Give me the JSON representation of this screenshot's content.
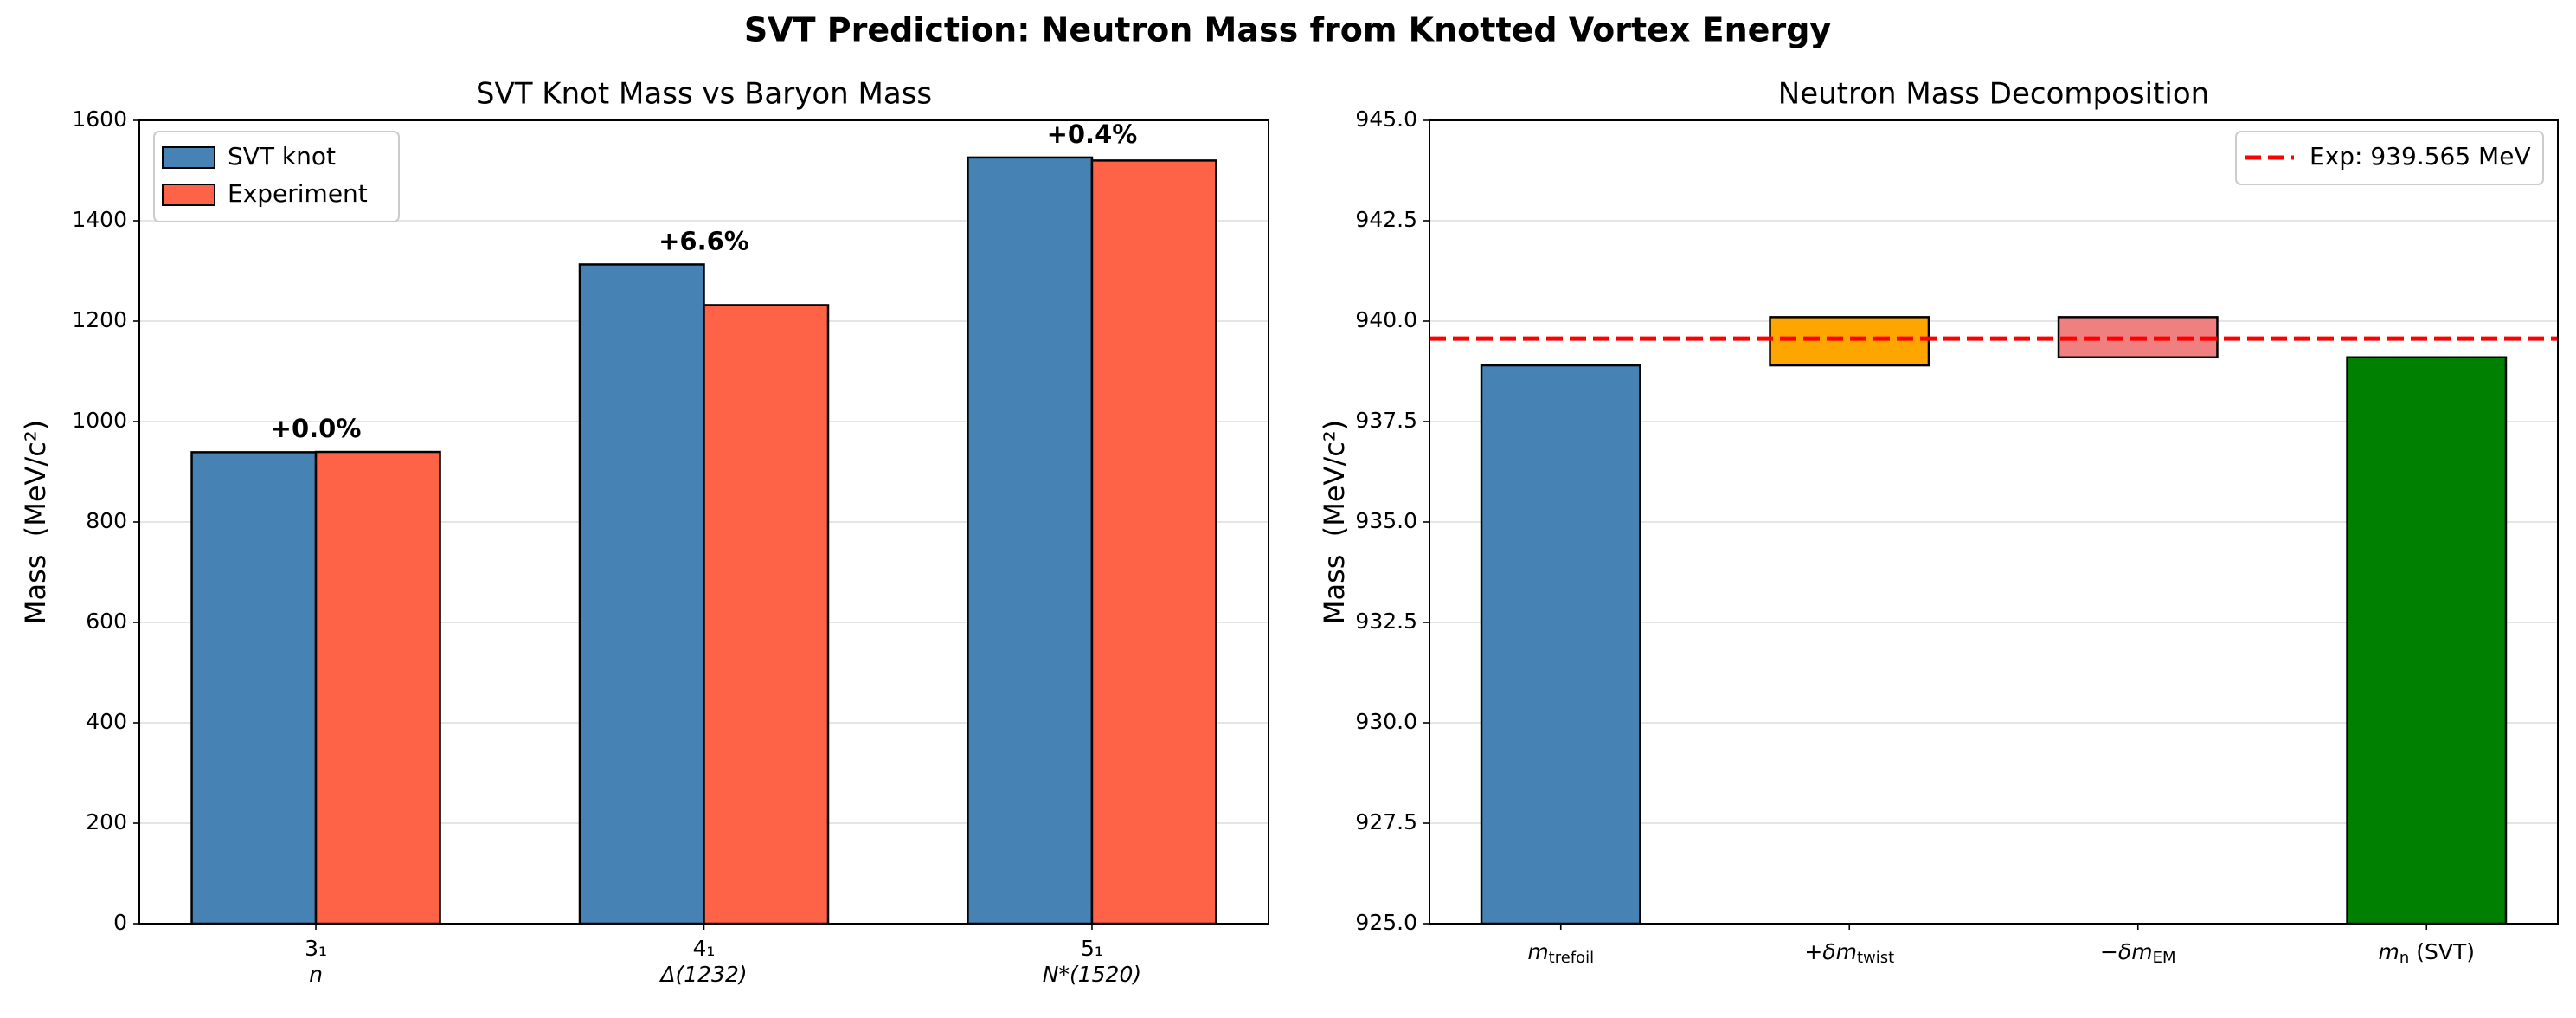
{
  "title": "SVT Prediction: Neutron Mass from Knotted Vortex Energy",
  "chart_data": [
    {
      "type": "bar",
      "title": "SVT Knot Mass vs Baryon Mass",
      "y_label": "Mass  (MeV/c²)",
      "categories": [
        "3₁",
        "4₁",
        "5₁"
      ],
      "sublabels": [
        "n",
        "Δ(1232)",
        "N*(1520)"
      ],
      "series": [
        {
          "name": "SVT knot",
          "color": "#4682b4",
          "values": [
            939,
            1313,
            1526
          ]
        },
        {
          "name": "Experiment",
          "color": "#ff6347",
          "values": [
            939.565,
            1232,
            1520
          ]
        }
      ],
      "annotations": [
        "+0.0%",
        "+6.6%",
        "+0.4%"
      ],
      "ylim": [
        0,
        1600
      ],
      "yticks": [
        0,
        200,
        400,
        600,
        800,
        1000,
        1200,
        1400,
        1600
      ],
      "grid": true,
      "legend": "upper left"
    },
    {
      "type": "waterfall",
      "title": "Neutron Mass Decomposition",
      "y_label": "Mass  (MeV/c²)",
      "categories": [
        {
          "main": "m",
          "sub": "trefoil"
        },
        {
          "main": "+δm",
          "sub": "twist"
        },
        {
          "main": "−δm",
          "sub": "EM"
        },
        {
          "main": "m",
          "sub": "n",
          "suffix": " (SVT)"
        }
      ],
      "values": [
        938.9,
        1.2,
        -1.0,
        939.1
      ],
      "measures": [
        "absolute",
        "relative",
        "relative",
        "total"
      ],
      "colors": [
        "#4682b4",
        "#ffa500",
        "#f08080",
        "#008000"
      ],
      "reference_line": {
        "value": 939.565,
        "label": "Exp: 939.565 MeV",
        "color": "#ff0000"
      },
      "ylim": [
        925,
        945
      ],
      "yticks": [
        {
          "value": 925,
          "label": "925.0"
        },
        {
          "value": 927.5,
          "label": "927.5"
        },
        {
          "value": 930,
          "label": "930.0"
        },
        {
          "value": 932.5,
          "label": "932.5"
        },
        {
          "value": 935,
          "label": "935.0"
        },
        {
          "value": 937.5,
          "label": "937.5"
        },
        {
          "value": 940,
          "label": "940.0"
        },
        {
          "value": 942.5,
          "label": "942.5"
        },
        {
          "value": 945,
          "label": "945.0"
        }
      ],
      "grid": true,
      "legend": "upper right"
    }
  ]
}
